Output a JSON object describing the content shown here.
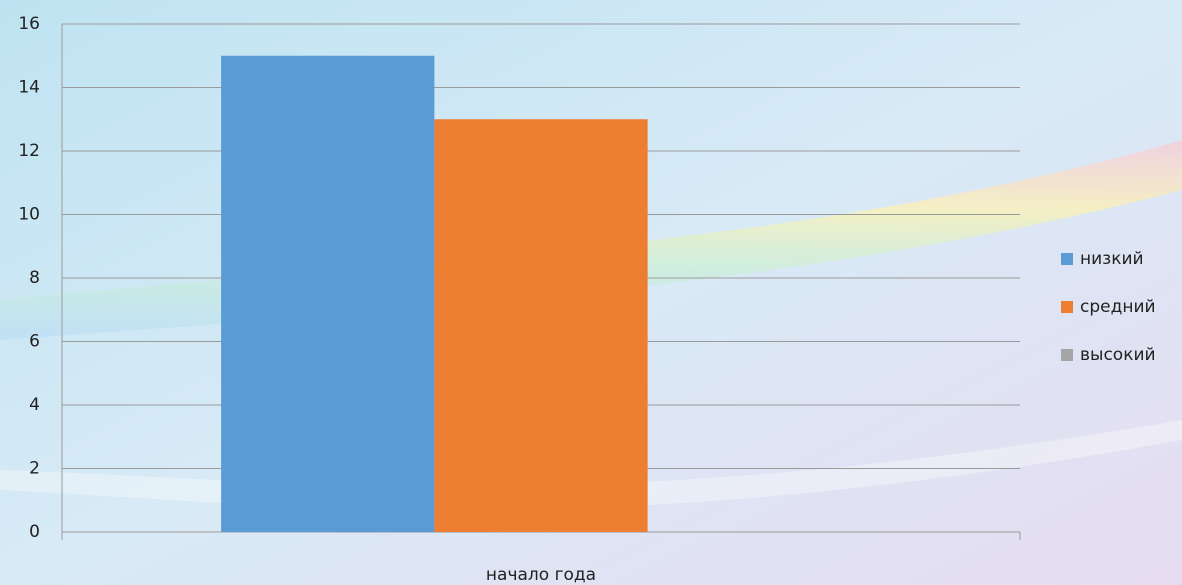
{
  "chart_data": {
    "type": "bar",
    "categories": [
      "начало года"
    ],
    "series": [
      {
        "name": "низкий",
        "color": "#5b9bd5",
        "values": [
          15
        ]
      },
      {
        "name": "средний",
        "color": "#ed7d31",
        "values": [
          13
        ]
      },
      {
        "name": "высокий",
        "color": "#a5a5a5",
        "values": [
          0
        ]
      }
    ],
    "ylim": [
      0,
      16
    ],
    "yticks": [
      0,
      2,
      4,
      6,
      8,
      10,
      12,
      14,
      16
    ],
    "grid": true,
    "legend": "right"
  }
}
